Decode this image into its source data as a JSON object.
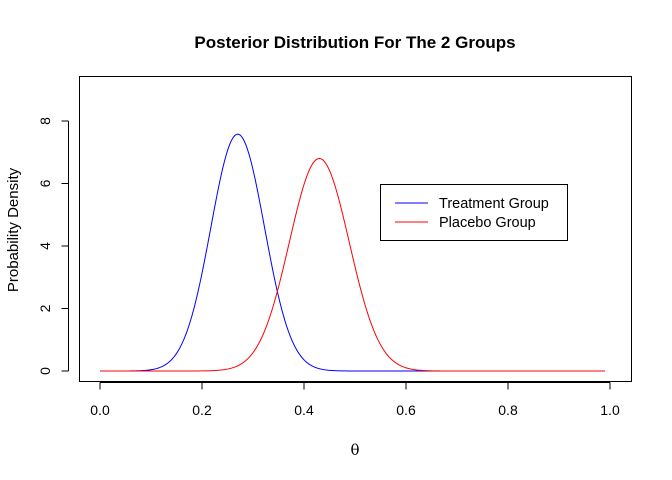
{
  "chart_data": {
    "type": "line",
    "title": "Posterior Distribution For The 2 Groups",
    "xlabel": "θ",
    "ylabel": "Probability Density",
    "xlim": [
      0,
      1
    ],
    "ylim": [
      0,
      9.2
    ],
    "xticks": [
      "0.0",
      "0.2",
      "0.4",
      "0.6",
      "0.8",
      "1.0"
    ],
    "yticks": [
      "0",
      "2",
      "4",
      "6",
      "8"
    ],
    "x_range": [
      0.0,
      0.99
    ],
    "grid": false,
    "legend": {
      "position": "right"
    },
    "series": [
      {
        "name": "Treatment Group",
        "color": "#0000ff",
        "peak_x": 0.27,
        "peak_y": 7.58,
        "sd": 0.0526
      },
      {
        "name": "Placebo Group",
        "color": "#ff0000",
        "peak_x": 0.43,
        "peak_y": 6.8,
        "sd": 0.0587
      }
    ]
  }
}
